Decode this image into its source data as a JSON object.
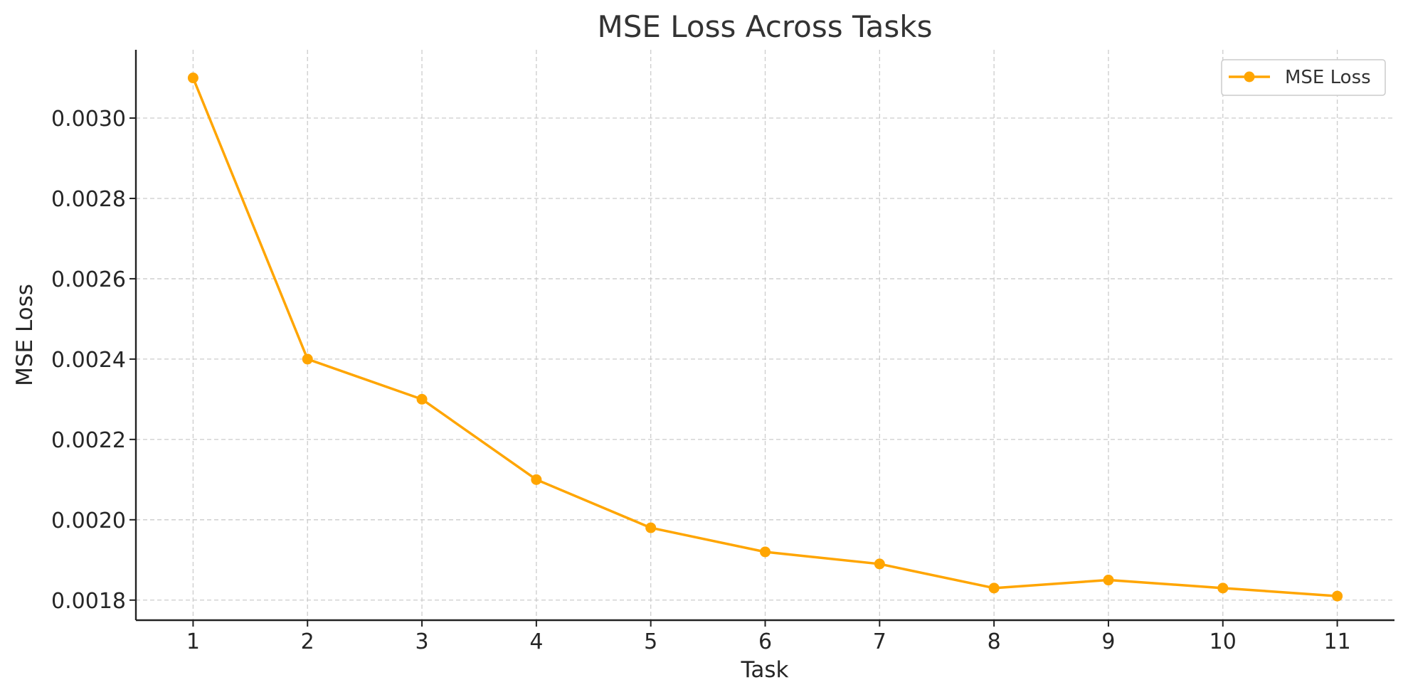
{
  "chart_data": {
    "type": "line",
    "title": "MSE Loss Across Tasks",
    "xlabel": "Task",
    "ylabel": "MSE Loss",
    "x": [
      1,
      2,
      3,
      4,
      5,
      6,
      7,
      8,
      9,
      10,
      11
    ],
    "x_tick_labels": [
      "1",
      "2",
      "3",
      "4",
      "5",
      "6",
      "7",
      "8",
      "9",
      "10",
      "11"
    ],
    "y_ticks": [
      0.0018,
      0.002,
      0.0022,
      0.0024,
      0.0026,
      0.0028,
      0.003
    ],
    "y_tick_labels": [
      "0.0018",
      "0.0020",
      "0.0022",
      "0.0024",
      "0.0026",
      "0.0028",
      "0.0030"
    ],
    "xlim": [
      0.5,
      11.5
    ],
    "ylim": [
      0.00175,
      0.00317
    ],
    "grid": true,
    "legend_position": "top-right",
    "series": [
      {
        "name": "MSE Loss",
        "color": "#FFA500",
        "marker": "circle",
        "values": [
          0.0031,
          0.0024,
          0.0023,
          0.0021,
          0.00198,
          0.00192,
          0.00189,
          0.00183,
          0.00185,
          0.00183,
          0.00181
        ]
      }
    ]
  }
}
